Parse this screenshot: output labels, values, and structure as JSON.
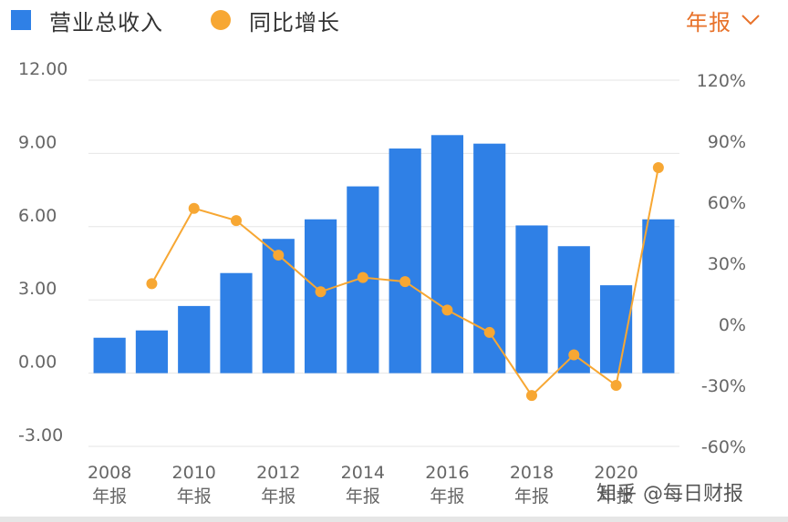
{
  "legend": {
    "revenue_label": "营业总收入",
    "growth_label": "同比增长"
  },
  "period_selector": {
    "label": "年报"
  },
  "watermark": "知乎 @每日财报",
  "colors": {
    "bar": "#2f80e6",
    "line": "#f7a733",
    "accent": "#e8722a",
    "grid": "#e6e6e6",
    "tick": "#666666"
  },
  "chart_data": {
    "type": "bar",
    "categories": [
      "2008年报",
      "2009年报",
      "2010年报",
      "2011年报",
      "2012年报",
      "2013年报",
      "2014年报",
      "2015年报",
      "2016年报",
      "2017年报",
      "2018年报",
      "2019年报",
      "2020年报",
      "2021年报"
    ],
    "x_tick_labels": [
      {
        "year": "2008",
        "suffix": "年报"
      },
      {
        "year": "2010",
        "suffix": "年报"
      },
      {
        "year": "2012",
        "suffix": "年报"
      },
      {
        "year": "2014",
        "suffix": "年报"
      },
      {
        "year": "2016",
        "suffix": "年报"
      },
      {
        "year": "2018",
        "suffix": "年报"
      },
      {
        "year": "2020",
        "suffix": "年报"
      }
    ],
    "left_axis": {
      "ticks": [
        "12.00",
        "9.00",
        "6.00",
        "3.00",
        "0.00",
        "-3.00"
      ],
      "ylim": [
        -3,
        12
      ]
    },
    "right_axis": {
      "ticks": [
        "120%",
        "90%",
        "60%",
        "30%",
        "0%",
        "-30%",
        "-60%"
      ],
      "ylim": [
        -60,
        120
      ]
    },
    "series": [
      {
        "name": "营业总收入",
        "type": "bar",
        "axis": "left",
        "values": [
          1.45,
          1.75,
          2.75,
          4.1,
          5.5,
          6.3,
          7.65,
          9.2,
          9.75,
          9.4,
          6.05,
          5.2,
          3.6,
          6.3
        ]
      },
      {
        "name": "同比增长",
        "type": "line",
        "axis": "right",
        "values": [
          null,
          20,
          57,
          51,
          34,
          16,
          23,
          21,
          7,
          -4,
          -35,
          -15,
          -30,
          77
        ]
      }
    ],
    "grid": true,
    "legend_position": "top-left"
  }
}
